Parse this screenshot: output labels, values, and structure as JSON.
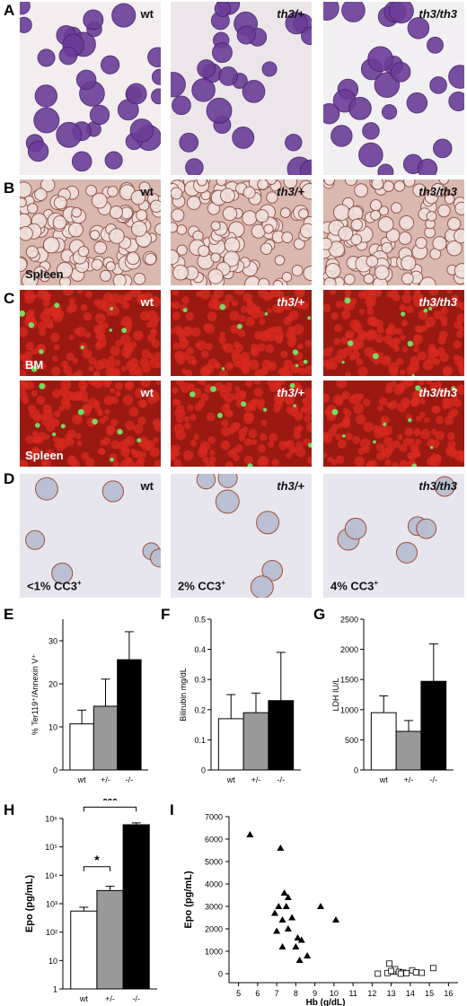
{
  "panels": {
    "A": {
      "letter": "A",
      "images": [
        {
          "label": "wt",
          "bg": "#f3edf0"
        },
        {
          "label": "th3/+",
          "bg": "#ece6ea"
        },
        {
          "label": "th3/th3",
          "bg": "#f2eff2"
        }
      ],
      "cell_color": "#6b3d98"
    },
    "B": {
      "letter": "B",
      "tissue": "Spleen",
      "images": [
        {
          "label": "wt"
        },
        {
          "label": "th3/+"
        },
        {
          "label": "th3/th3"
        }
      ],
      "bg": "#d9b8ae"
    },
    "C": {
      "letter": "C",
      "rows": [
        {
          "tissue": "BM",
          "images": [
            {
              "label": "wt"
            },
            {
              "label": "th3/+"
            },
            {
              "label": "th3/th3"
            }
          ]
        },
        {
          "tissue": "Spleen",
          "images": [
            {
              "label": "wt"
            },
            {
              "label": "th3/+"
            },
            {
              "label": "th3/th3"
            }
          ]
        }
      ],
      "bg": "#9a1a12",
      "green": "#6cf06a"
    },
    "D": {
      "letter": "D",
      "images": [
        {
          "label": "wt",
          "cc3_prefix": "<1% CC3"
        },
        {
          "label": "th3/+",
          "cc3_prefix": "2% CC3"
        },
        {
          "label": "th3/th3",
          "cc3_prefix": "4% CC3"
        }
      ],
      "cc3_sup": "+",
      "bg": "#e7e6ee"
    }
  },
  "chart_data": [
    {
      "id": "E",
      "type": "bar",
      "letter": "E",
      "categories": [
        "wt",
        "+/-",
        "-/-"
      ],
      "values": [
        10.7,
        14.8,
        25.6
      ],
      "errors": [
        3.2,
        6.3,
        6.5
      ],
      "colors": [
        "#ffffff",
        "#999999",
        "#000000"
      ],
      "ylabel": "% Ter119⁺/Annexin V⁺",
      "ylim": [
        0,
        35
      ],
      "yticks": [
        0,
        10,
        20,
        30
      ]
    },
    {
      "id": "F",
      "type": "bar",
      "letter": "F",
      "categories": [
        "wt",
        "+/-",
        "-/-"
      ],
      "values": [
        0.17,
        0.19,
        0.23
      ],
      "errors": [
        0.08,
        0.065,
        0.16
      ],
      "colors": [
        "#ffffff",
        "#999999",
        "#000000"
      ],
      "ylabel": "Bilirubin mg/dL",
      "ylim": [
        0,
        0.5
      ],
      "yticks": [
        0,
        0.1,
        0.2,
        0.3,
        0.4,
        0.5
      ]
    },
    {
      "id": "G",
      "type": "bar",
      "letter": "G",
      "categories": [
        "wt",
        "+/-",
        "-/-"
      ],
      "values": [
        950,
        640,
        1470
      ],
      "errors": [
        280,
        180,
        620
      ],
      "colors": [
        "#ffffff",
        "#999999",
        "#000000"
      ],
      "ylabel": "LDH IU/L",
      "ylim": [
        0,
        2500
      ],
      "yticks": [
        0,
        500,
        1000,
        1500,
        2000,
        2500
      ]
    },
    {
      "id": "H",
      "type": "bar",
      "letter": "H",
      "log": true,
      "categories": [
        "wt",
        "+/-",
        "-/-"
      ],
      "values": [
        550,
        2900,
        600000
      ],
      "errors": [
        200,
        1200,
        100000
      ],
      "colors": [
        "#ffffff",
        "#999999",
        "#000000"
      ],
      "ylabel": "Epo (pg/mL)",
      "ylim": [
        1,
        1000000
      ],
      "yticks": [
        {
          "v": 1,
          "t": "1"
        },
        {
          "v": 10,
          "t": "10"
        },
        {
          "v": 100,
          "t": "10²"
        },
        {
          "v": 1000,
          "t": "10³"
        },
        {
          "v": 10000,
          "t": "10⁴"
        },
        {
          "v": 100000,
          "t": "10⁵"
        },
        {
          "v": 1000000,
          "t": "10⁶"
        }
      ],
      "annotations": [
        {
          "text": "*",
          "from": 0,
          "to": 1
        },
        {
          "text": "***",
          "from": 0,
          "to": 2
        }
      ]
    },
    {
      "id": "I",
      "type": "scatter",
      "letter": "I",
      "xlabel": "Hb (g/dL)",
      "ylabel": "Epo (pg/mL)",
      "xlim": [
        4.5,
        16.5
      ],
      "ylim": [
        -400,
        7000
      ],
      "xticks": [
        5,
        6,
        7,
        8,
        9,
        10,
        11,
        12,
        13,
        14,
        15,
        16
      ],
      "yticks": [
        0,
        1000,
        2000,
        3000,
        4000,
        5000,
        6000,
        7000
      ],
      "series": [
        {
          "marker": "triangle",
          "points": [
            [
              5.6,
              6200
            ],
            [
              7.2,
              5600
            ],
            [
              7.4,
              3600
            ],
            [
              7.6,
              3400
            ],
            [
              7.1,
              3000
            ],
            [
              7.5,
              3000
            ],
            [
              9.3,
              3000
            ],
            [
              6.9,
              2700
            ],
            [
              7.8,
              2500
            ],
            [
              7.3,
              2400
            ],
            [
              10.1,
              2400
            ],
            [
              7.6,
              2000
            ],
            [
              7.0,
              1900
            ],
            [
              8.1,
              1600
            ],
            [
              8.3,
              1500
            ],
            [
              7.3,
              1200
            ],
            [
              8.0,
              1200
            ],
            [
              8.6,
              800
            ],
            [
              8.2,
              600
            ]
          ]
        },
        {
          "marker": "square",
          "points": [
            [
              12.3,
              0
            ],
            [
              12.8,
              30
            ],
            [
              12.9,
              450
            ],
            [
              13.1,
              100
            ],
            [
              13.2,
              200
            ],
            [
              13.4,
              80
            ],
            [
              13.6,
              50
            ],
            [
              13.8,
              20
            ],
            [
              14.1,
              150
            ],
            [
              14.3,
              60
            ],
            [
              14.6,
              40
            ],
            [
              15.2,
              250
            ],
            [
              13.0,
              120
            ],
            [
              13.5,
              0
            ]
          ]
        }
      ]
    }
  ]
}
